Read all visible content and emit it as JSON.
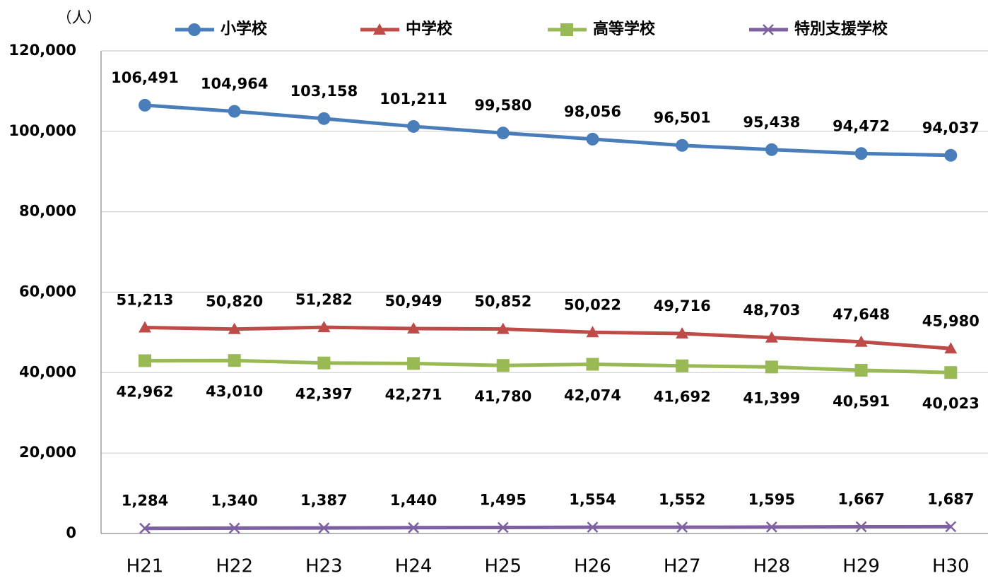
{
  "chart_data": {
    "type": "line",
    "ylabel": "（人）",
    "categories": [
      "H21",
      "H22",
      "H23",
      "H24",
      "H25",
      "H26",
      "H27",
      "H28",
      "H29",
      "H30"
    ],
    "series": [
      {
        "name": "小学校",
        "color": "#4a7ebb",
        "marker": "circle",
        "values": [
          106491,
          104964,
          103158,
          101211,
          99580,
          98056,
          96501,
          95438,
          94472,
          94037
        ],
        "value_labels": [
          "106,491",
          "104,964",
          "103,158",
          "101,211",
          "99,580",
          "98,056",
          "96,501",
          "95,438",
          "94,472",
          "94,037"
        ]
      },
      {
        "name": "中学校",
        "color": "#be4b48",
        "marker": "triangle",
        "values": [
          51213,
          50820,
          51282,
          50949,
          50852,
          50022,
          49716,
          48703,
          47648,
          45980
        ],
        "value_labels": [
          "51,213",
          "50,820",
          "51,282",
          "50,949",
          "50,852",
          "50,022",
          "49,716",
          "48,703",
          "47,648",
          "45,980"
        ]
      },
      {
        "name": "高等学校",
        "color": "#98b954",
        "marker": "square",
        "values": [
          42962,
          43010,
          42397,
          42271,
          41780,
          42074,
          41692,
          41399,
          40591,
          40023
        ],
        "value_labels": [
          "42,962",
          "43,010",
          "42,397",
          "42,271",
          "41,780",
          "42,074",
          "41,692",
          "41,399",
          "40,591",
          "40,023"
        ]
      },
      {
        "name": "特別支援学校",
        "color": "#7d60a0",
        "marker": "x",
        "values": [
          1284,
          1340,
          1387,
          1440,
          1495,
          1554,
          1552,
          1595,
          1667,
          1687
        ],
        "value_labels": [
          "1,284",
          "1,340",
          "1,387",
          "1,440",
          "1,495",
          "1,554",
          "1,552",
          "1,595",
          "1,667",
          "1,687"
        ]
      }
    ],
    "ylim": [
      0,
      120000
    ],
    "yticks": [
      0,
      {
        "value": 20000,
        "label": "20,000"
      },
      {
        "value": 40000,
        "label": "40,000"
      },
      {
        "value": 60000,
        "label": "60,000"
      },
      {
        "value": 80000,
        "label": "80,000"
      },
      {
        "value": 100000,
        "label": "100,000"
      },
      {
        "value": 120000,
        "label": "120,000"
      }
    ],
    "grid": true
  }
}
